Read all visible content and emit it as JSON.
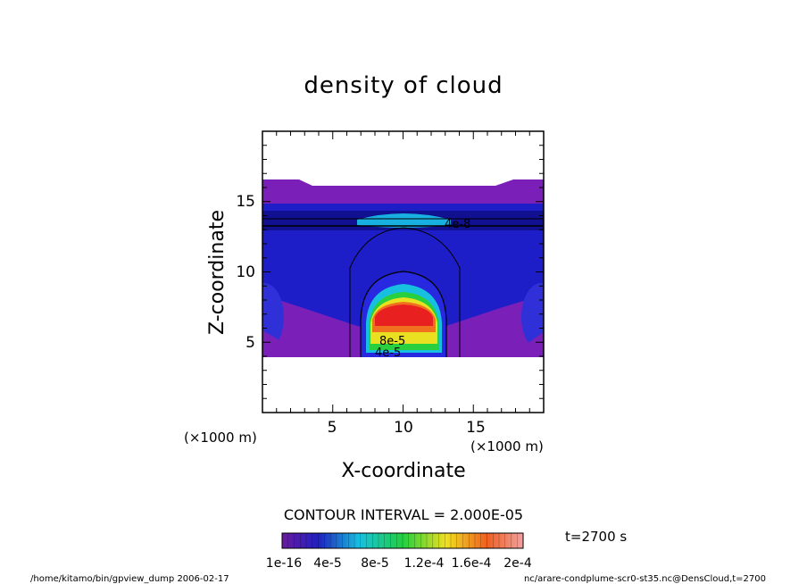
{
  "chart_data": {
    "type": "heatmap",
    "title": "density of cloud",
    "xlabel": "X-coordinate",
    "ylabel": "Z-coordinate",
    "x_unit": "(×1000 m)",
    "y_unit": "(×1000 m)",
    "xlim": [
      0,
      20
    ],
    "ylim": [
      0,
      20
    ],
    "xticks": [
      5,
      10,
      15
    ],
    "yticks": [
      5,
      10,
      15
    ],
    "x_tick_labels": [
      "5",
      "10",
      "15"
    ],
    "y_tick_labels": [
      "5",
      "10",
      "15"
    ],
    "grid": false,
    "legend": "colorbar bottom",
    "contour_interval": "CONTOUR INTERVAL = 2.000E-05",
    "time_label": "t=2700 s",
    "colorbar_labels": [
      "1e-16",
      "4e-5",
      "8e-5",
      "1.2e-4",
      "1.6e-4",
      "2e-4"
    ],
    "colorbar_values": [
      1e-16,
      4e-05,
      8e-05,
      0.00012,
      0.00016,
      0.0002
    ],
    "contour_labels": [
      "4e-8",
      "8e-5",
      "4e-5"
    ],
    "colors": {
      "low": "#7a1fb0",
      "mid_low": "#2a2ad0",
      "mid": "#19c8e0",
      "mid_high": "#24d04a",
      "high": "#f0e020",
      "max": "#e82020"
    }
  },
  "footer": {
    "left": "/home/kitamo/bin/gpview_dump  2006-02-17",
    "right": "nc/arare-condplume-scr0-st35.nc@DensCloud,t=2700"
  }
}
